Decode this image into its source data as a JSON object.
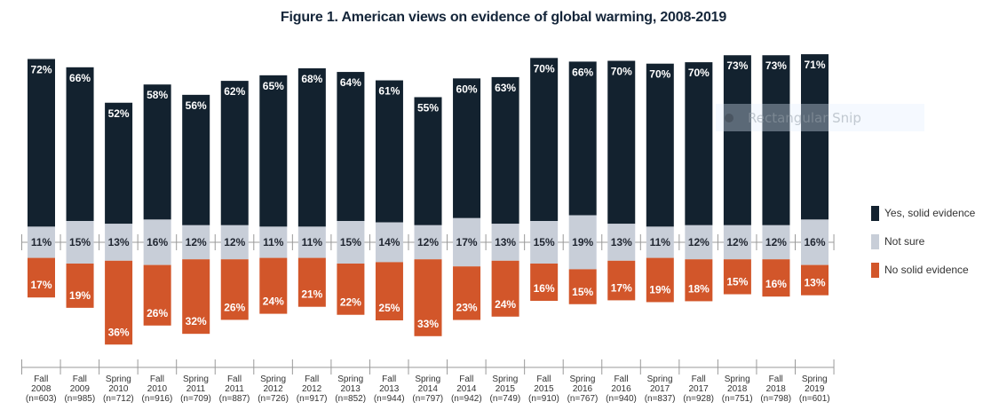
{
  "chart_data": {
    "type": "bar",
    "subtype": "diverging-stacked",
    "title": "Figure 1. American views on evidence of global warming, 2008-2019",
    "xlabel": "",
    "ylabel": "",
    "grid": false,
    "legend_position": "right",
    "categories": [
      {
        "season": "Fall",
        "year": "2008",
        "n": "(n=603)"
      },
      {
        "season": "Fall",
        "year": "2009",
        "n": "(n=985)"
      },
      {
        "season": "Spring",
        "year": "2010",
        "n": "(n=712)"
      },
      {
        "season": "Fall",
        "year": "2010",
        "n": "(n=916)"
      },
      {
        "season": "Spring",
        "year": "2011",
        "n": "(n=709)"
      },
      {
        "season": "Fall",
        "year": "2011",
        "n": "(n=887)"
      },
      {
        "season": "Spring",
        "year": "2012",
        "n": "(n=726)"
      },
      {
        "season": "Fall",
        "year": "2012",
        "n": "(n=917)"
      },
      {
        "season": "Spring",
        "year": "2013",
        "n": "(n=852)"
      },
      {
        "season": "Fall",
        "year": "2013",
        "n": "(n=944)"
      },
      {
        "season": "Spring",
        "year": "2014",
        "n": "(n=797)"
      },
      {
        "season": "Fall",
        "year": "2014",
        "n": "(n=942)"
      },
      {
        "season": "Spring",
        "year": "2015",
        "n": "(n=749)"
      },
      {
        "season": "Fall",
        "year": "2015",
        "n": "(n=910)"
      },
      {
        "season": "Spring",
        "year": "2016",
        "n": "(n=767)"
      },
      {
        "season": "Fall",
        "year": "2016",
        "n": "(n=940)"
      },
      {
        "season": "Spring",
        "year": "2017",
        "n": "(n=837)"
      },
      {
        "season": "Fall",
        "year": "2017",
        "n": "(n=928)"
      },
      {
        "season": "Spring",
        "year": "2018",
        "n": "(n=751)"
      },
      {
        "season": "Fall",
        "year": "2018",
        "n": "(n=798)"
      },
      {
        "season": "Spring",
        "year": "2019",
        "n": "(n=601)"
      }
    ],
    "series": [
      {
        "name": "Yes, solid evidence",
        "color": "#13222f",
        "values": [
          72,
          66,
          52,
          58,
          56,
          62,
          65,
          68,
          64,
          61,
          55,
          60,
          63,
          70,
          66,
          70,
          70,
          70,
          73,
          73,
          71
        ]
      },
      {
        "name": "Not sure",
        "color": "#c8ced8",
        "values": [
          11,
          15,
          13,
          16,
          12,
          12,
          11,
          11,
          15,
          14,
          12,
          17,
          13,
          15,
          19,
          13,
          11,
          12,
          12,
          12,
          16
        ]
      },
      {
        "name": "No solid evidence",
        "color": "#d2562a",
        "values": [
          17,
          19,
          36,
          26,
          32,
          26,
          24,
          21,
          22,
          25,
          33,
          23,
          24,
          16,
          15,
          17,
          19,
          18,
          15,
          16,
          13
        ]
      }
    ],
    "value_suffix": "%"
  },
  "overlay": {
    "label": "Rectangular Snip"
  }
}
